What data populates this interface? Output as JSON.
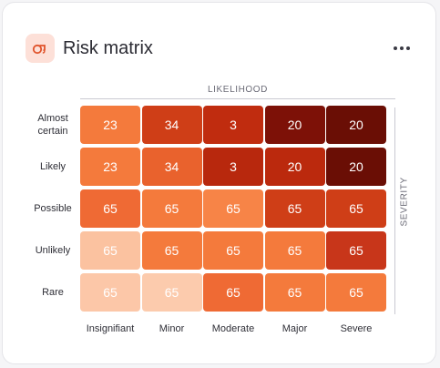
{
  "header": {
    "title": "Risk matrix",
    "icon": "risk-matrix-icon",
    "menu_icon": "more-horizontal-icon"
  },
  "chart_data": {
    "type": "heatmap",
    "title": "Risk matrix",
    "xlabel": "LIKELIHOOD",
    "ylabel": "SEVERITY",
    "x_categories": [
      "Insignifiant",
      "Minor",
      "Moderate",
      "Major",
      "Severe"
    ],
    "y_categories": [
      "Almost certain",
      "Likely",
      "Possible",
      "Unlikely",
      "Rare"
    ],
    "values": [
      [
        23,
        34,
        3,
        20,
        20
      ],
      [
        23,
        34,
        3,
        20,
        20
      ],
      [
        65,
        65,
        65,
        65,
        65
      ],
      [
        65,
        65,
        65,
        65,
        65
      ],
      [
        65,
        65,
        65,
        65,
        65
      ]
    ],
    "colors": [
      [
        "#f47a3c",
        "#cf3e17",
        "#c02c0f",
        "#7d1107",
        "#6a0e05"
      ],
      [
        "#f47a3c",
        "#e9622d",
        "#b8280d",
        "#bb290d",
        "#6a0e05"
      ],
      [
        "#ef6a34",
        "#f47a3c",
        "#f78447",
        "#cf3e17",
        "#cf3e17"
      ],
      [
        "#fbc2a0",
        "#f47a3c",
        "#f47a3c",
        "#f47a3c",
        "#c8361a"
      ],
      [
        "#fcc7a8",
        "#fccbad",
        "#ef6a34",
        "#f47a3c",
        "#f47a3c"
      ]
    ],
    "legend": "none",
    "grid": false
  }
}
